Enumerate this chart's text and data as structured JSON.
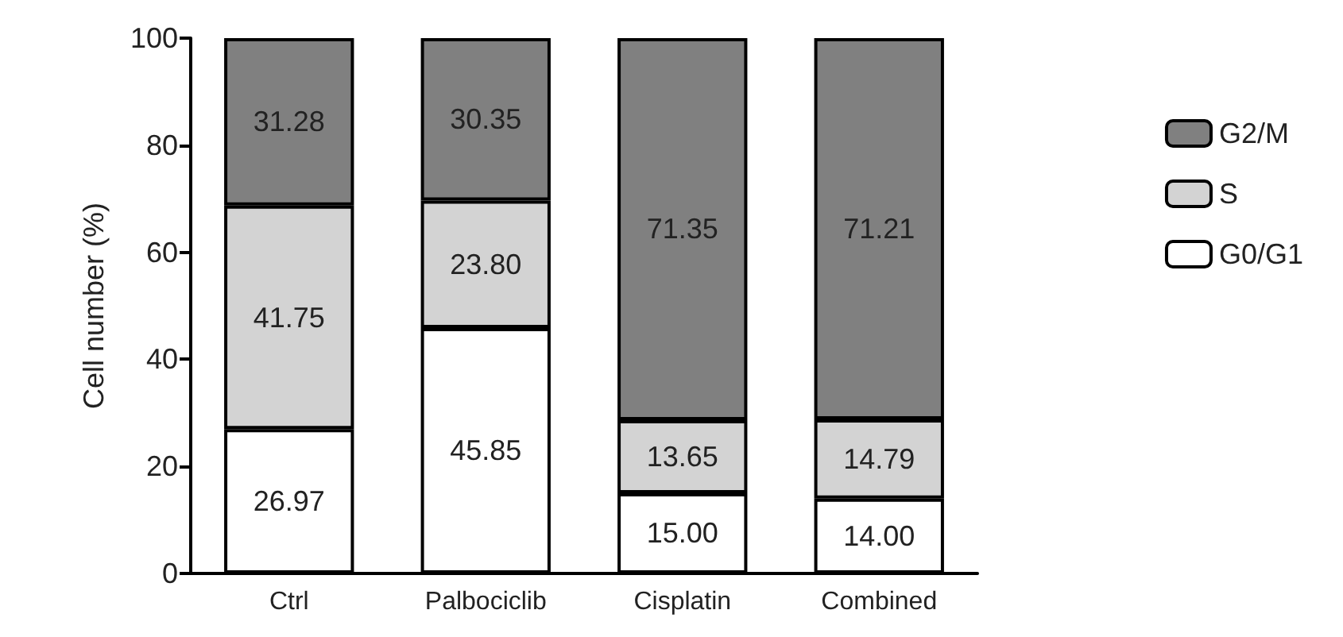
{
  "chart_data": {
    "type": "bar",
    "stacked": true,
    "ylabel": "Cell number (%)",
    "categories": [
      "Ctrl",
      "Palbociclib",
      "Cisplatin",
      "Combined"
    ],
    "series": [
      {
        "name": "G0/G1",
        "color": "#ffffff",
        "values": [
          26.97,
          45.85,
          15.0,
          14.0
        ],
        "value_labels": [
          "26.97",
          "45.85",
          "15.00",
          "14.00"
        ]
      },
      {
        "name": "S",
        "color": "#d3d3d3",
        "values": [
          41.75,
          23.8,
          13.65,
          14.79
        ],
        "value_labels": [
          "41.75",
          "23.80",
          "13.65",
          "14.79"
        ]
      },
      {
        "name": "G2/M",
        "color": "#808080",
        "values": [
          31.28,
          30.35,
          71.35,
          71.21
        ],
        "value_labels": [
          "31.28",
          "30.35",
          "71.35",
          "71.21"
        ]
      }
    ],
    "ylim": [
      0,
      100
    ],
    "yticks": [
      0,
      20,
      40,
      60,
      80,
      100
    ],
    "grid": false,
    "legend": "right"
  }
}
